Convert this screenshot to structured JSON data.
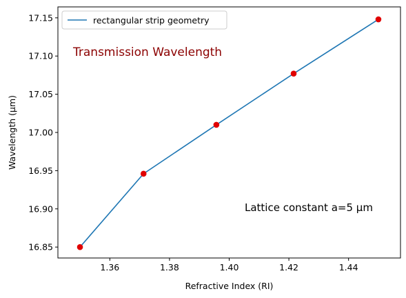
{
  "chart_data": {
    "type": "line",
    "xlabel": "Refractive Index (RI)",
    "ylabel": "Wavelength (μm)",
    "xlim": [
      1.3426,
      1.4574
    ],
    "ylim": [
      16.8357,
      17.1643
    ],
    "x_ticks": [
      1.36,
      1.38,
      1.4,
      1.42,
      1.44
    ],
    "x_tick_labels": [
      "1.36",
      "1.38",
      "1.40",
      "1.42",
      "1.44"
    ],
    "y_ticks": [
      16.85,
      16.9,
      16.95,
      17.0,
      17.05,
      17.1,
      17.15
    ],
    "y_tick_labels": [
      "16.85",
      "16.90",
      "16.95",
      "17.00",
      "17.05",
      "17.10",
      "17.15"
    ],
    "grid": false,
    "legend_position": "top-left",
    "series": [
      {
        "name": "rectangular strip geometry",
        "color": "#1f77b4",
        "marker_color": "#e00000",
        "x": [
          1.35,
          1.3713,
          1.3957,
          1.4216,
          1.45
        ],
        "y": [
          16.85,
          16.946,
          17.01,
          17.077,
          17.148
        ]
      }
    ],
    "annotations": [
      {
        "id": "title_annotation",
        "text": "Transmission Wavelength",
        "color": "#8b0000"
      },
      {
        "id": "lattice_annotation",
        "text": "Lattice constant a=5 μm",
        "color": "#000000"
      }
    ]
  }
}
